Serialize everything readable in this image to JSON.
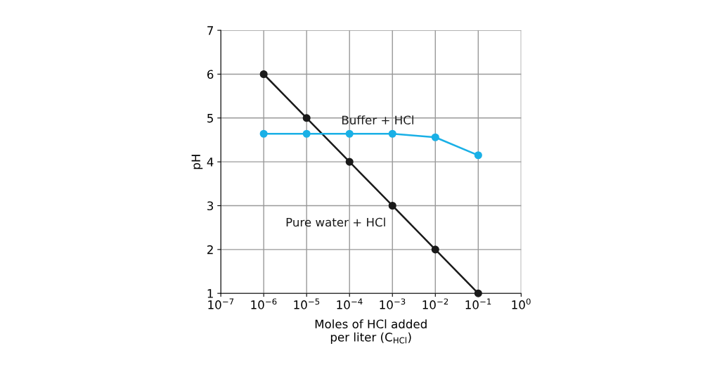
{
  "chart_data": {
    "type": "line",
    "xlabel": "Moles of HCl added\nper liter (C$_{HCl}$)",
    "ylabel": "pH",
    "log": "x",
    "grid": true,
    "marker": "circle",
    "line_style": "solid",
    "x": [
      1e-06,
      1e-05,
      0.0001,
      0.001,
      0.01,
      0.1
    ],
    "series": [
      {
        "name": "Pure water + HCl",
        "color": "#1a1a1a",
        "values": [
          6,
          5,
          4,
          3,
          2,
          1
        ]
      },
      {
        "name": "Buffer + HCl",
        "color": "#1ab0e6",
        "values": [
          4.64,
          4.64,
          4.64,
          4.64,
          4.56,
          4.15
        ]
      }
    ],
    "xlim": [
      1e-07,
      1
    ],
    "xticks": [
      {
        "value": 1e-07,
        "label": "10$^{−7}$"
      },
      {
        "value": 1e-06,
        "label": "10$^{−6}$"
      },
      {
        "value": 1e-05,
        "label": "10$^{−5}$"
      },
      {
        "value": 0.0001,
        "label": "10$^{−4}$"
      },
      {
        "value": 0.001,
        "label": "10$^{−3}$"
      },
      {
        "value": 0.01,
        "label": "10$^{−2}$"
      },
      {
        "value": 0.1,
        "label": "10$^{−1}$"
      },
      {
        "value": 1,
        "label": "10$^{0}$"
      }
    ],
    "ylim": [
      1,
      7
    ],
    "yticks": [
      1,
      2,
      3,
      4,
      5,
      6,
      7
    ]
  }
}
